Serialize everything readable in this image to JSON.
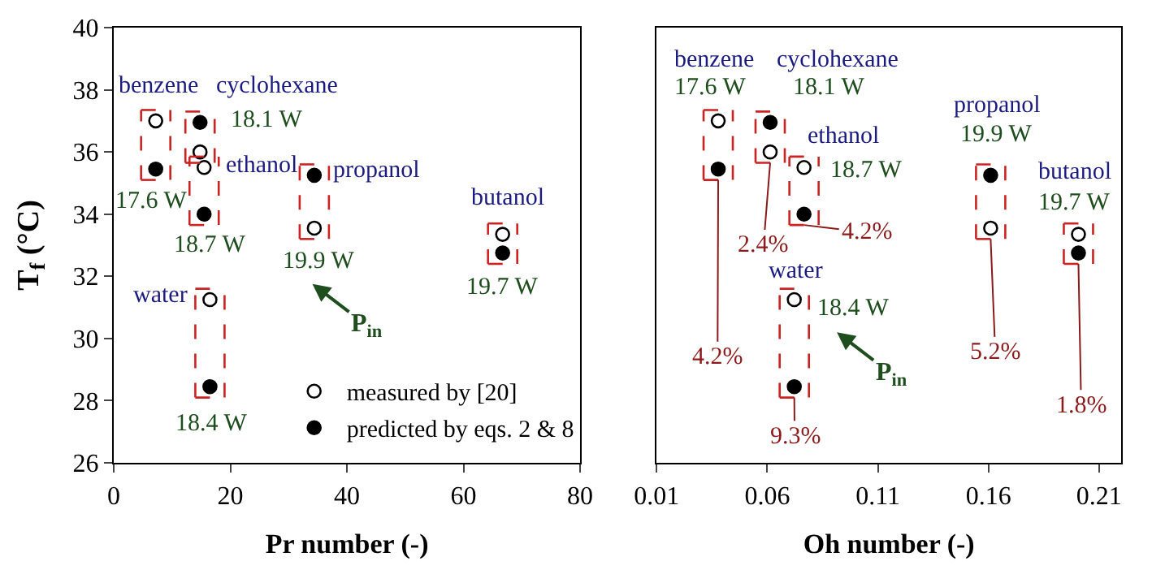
{
  "chart_data": [
    {
      "type": "scatter",
      "xlabel": "Pr number (-)",
      "ylabel": "T$_{f}$ (°C)",
      "xlim": [
        0,
        80
      ],
      "xticks": [
        0,
        20,
        40,
        60,
        80
      ],
      "ylim": [
        26,
        40
      ],
      "yticks": [
        26,
        28,
        30,
        32,
        34,
        36,
        38,
        40
      ],
      "legend": "bottom right",
      "marker": "circle",
      "x": [
        7.2,
        14.8,
        15.5,
        34.4,
        66.7,
        16.5
      ],
      "series": [
        {
          "name": "measured by [20]",
          "color": "#ffffff",
          "values": [
            37.0,
            36.0,
            35.5,
            33.55,
            33.35,
            31.25
          ]
        },
        {
          "name": "predicted by eqs. 2 & 8",
          "color": "#000000",
          "values": [
            35.45,
            36.95,
            34.0,
            35.25,
            32.75,
            28.45
          ]
        }
      ],
      "annotations": [
        "benzene",
        "cyclohexane",
        "18.1 W",
        "ethanol",
        "17.6 W",
        "18.7 W",
        "propanol",
        "19.9 W",
        "butanol",
        "19.7 W",
        "water",
        "18.4 W",
        "P$_{in}$"
      ]
    },
    {
      "type": "scatter",
      "xlabel": "Oh number (-)",
      "xlim": [
        0.01,
        0.22
      ],
      "xticks": [
        0.01,
        0.06,
        0.11,
        0.16,
        0.21
      ],
      "ylim": [
        26,
        40
      ],
      "marker": "circle",
      "tick_labels": "x",
      "x": [
        0.0378,
        0.0613,
        0.0766,
        0.161,
        0.2007,
        0.0722
      ],
      "series": [
        {
          "color": "#ffffff",
          "values": [
            37.0,
            36.0,
            35.5,
            33.55,
            33.35,
            31.25
          ]
        },
        {
          "color": "#000000",
          "values": [
            35.45,
            36.95,
            34.0,
            35.25,
            32.75,
            28.45
          ]
        }
      ],
      "annotations": [
        "benzene",
        "17.6 W",
        "cyclohexane",
        "18.1 W",
        "ethanol",
        "18.7 W",
        "propanol",
        "19.9 W",
        "butanol",
        "19.7 W",
        "water",
        "18.4 W",
        {
          "text": "2.4%",
          "x": 0.0613,
          "y": 36.0
        },
        {
          "text": "4.2%",
          "x": 0.0766,
          "y": 34.0
        },
        {
          "text": "4.2%",
          "x": 0.0378,
          "y": 35.45
        },
        {
          "text": "5.2%",
          "x": 0.161,
          "y": 33.55
        },
        {
          "text": "1.8%",
          "x": 0.2007,
          "y": 32.75
        },
        {
          "text": "9.3%",
          "x": 0.0722,
          "y": 28.45
        },
        "P$_{in}$"
      ]
    }
  ]
}
